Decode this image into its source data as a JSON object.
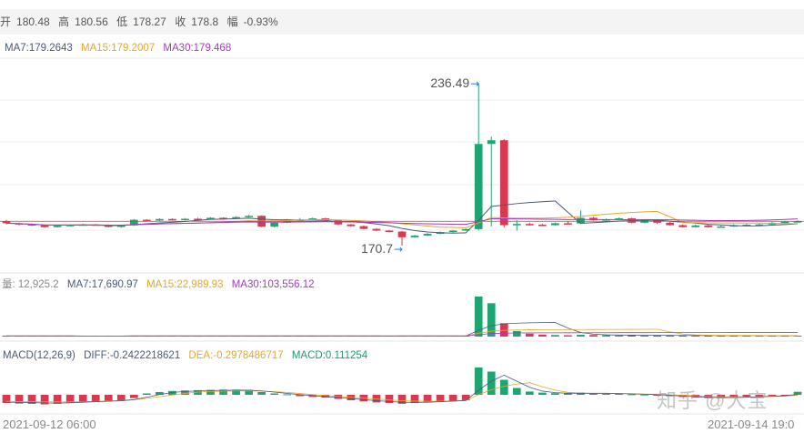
{
  "ohlc": {
    "open_label": "开",
    "open": "180.48",
    "high_label": "高",
    "high": "180.56",
    "low_label": "低",
    "low": "178.27",
    "close_label": "收",
    "close": "178.8",
    "change_label": "幅",
    "change": "-0.93%"
  },
  "price_ma": {
    "ma7": "MA7:179.2643",
    "ma15": "MA15:179.2007",
    "ma30": "MA30:179.468"
  },
  "volume_legend": {
    "vol": "量: 12,925.2",
    "ma7": "MA7:17,690.97",
    "ma15": "MA15:22,989.93",
    "ma30": "MA30:103,556.12"
  },
  "macd_legend": {
    "name": "MACD(12,26,9)",
    "diff": "DIFF:-0.2422218621",
    "dea": "DEA:-0.2978486717",
    "macd": "MACD:0.111254"
  },
  "annotations": {
    "high": "236.49",
    "low": "170.7"
  },
  "time_axis": {
    "start": "2021-09-12 06:00",
    "end": "2021-09-14 19:0"
  },
  "watermark": "知乎 @大宝",
  "colors": {
    "up": "#1ea672",
    "down": "#d9384f",
    "ma7": "#4a5a7a",
    "ma15": "#e8a530",
    "ma30": "#a23dbf"
  },
  "chart_data": {
    "type": "candlestick",
    "candles": [
      [
        180.5,
        179.8,
        181.2,
        179.3
      ],
      [
        179.8,
        179.4,
        180.0,
        178.9
      ],
      [
        179.4,
        179.0,
        179.7,
        178.6
      ],
      [
        179.0,
        178.2,
        179.3,
        177.9
      ],
      [
        178.2,
        178.8,
        179.1,
        178.0
      ],
      [
        178.8,
        179.1,
        179.4,
        178.6
      ],
      [
        179.1,
        179.3,
        179.6,
        178.9
      ],
      [
        179.3,
        179.2,
        179.5,
        178.9
      ],
      [
        179.2,
        178.3,
        179.3,
        178.1
      ],
      [
        178.3,
        178.9,
        179.2,
        178.0
      ],
      [
        178.9,
        181.2,
        181.5,
        178.7
      ],
      [
        181.2,
        180.9,
        181.4,
        180.6
      ],
      [
        180.9,
        181.5,
        181.8,
        180.7
      ],
      [
        181.5,
        181.1,
        181.8,
        180.9
      ],
      [
        181.1,
        181.6,
        181.9,
        180.9
      ],
      [
        181.6,
        181.4,
        182.0,
        181.2
      ],
      [
        181.4,
        182.0,
        182.3,
        181.2
      ],
      [
        182.0,
        181.7,
        182.2,
        181.4
      ],
      [
        181.7,
        182.3,
        182.6,
        181.5
      ],
      [
        182.3,
        182.8,
        183.2,
        182.1
      ],
      [
        182.8,
        178.4,
        183.0,
        178.2
      ],
      [
        178.4,
        180.0,
        180.3,
        178.0
      ],
      [
        180.0,
        181.2,
        181.5,
        179.8
      ],
      [
        181.2,
        181.3,
        181.9,
        181.0
      ],
      [
        181.3,
        181.8,
        182.1,
        181.1
      ],
      [
        181.8,
        181.0,
        182.0,
        180.8
      ],
      [
        181.0,
        179.3,
        181.2,
        179.0
      ],
      [
        179.3,
        178.6,
        179.5,
        178.4
      ],
      [
        178.6,
        177.5,
        178.9,
        177.3
      ],
      [
        177.5,
        176.8,
        177.8,
        176.5
      ],
      [
        176.8,
        176.4,
        177.0,
        176.1
      ],
      [
        176.4,
        174.1,
        176.6,
        170.7
      ],
      [
        174.1,
        174.8,
        175.0,
        173.9
      ],
      [
        174.8,
        175.5,
        175.8,
        174.6
      ],
      [
        175.5,
        176.2,
        176.4,
        175.3
      ],
      [
        176.2,
        176.8,
        177.0,
        176.0
      ],
      [
        176.8,
        177.4,
        177.6,
        176.6
      ],
      [
        177.4,
        212.0,
        236.49,
        176.8
      ],
      [
        212.0,
        213.5,
        215.0,
        178.5
      ],
      [
        213.5,
        179.0,
        214.0,
        178.0
      ],
      [
        179.0,
        179.5,
        181.0,
        176.8
      ],
      [
        179.5,
        179.2,
        180.0,
        178.8
      ],
      [
        179.2,
        179.0,
        179.6,
        178.6
      ],
      [
        179.0,
        179.8,
        180.1,
        178.8
      ],
      [
        179.8,
        179.7,
        180.5,
        179.3
      ],
      [
        179.7,
        182.0,
        185.0,
        179.5
      ],
      [
        182.0,
        181.0,
        182.4,
        180.8
      ],
      [
        181.0,
        181.4,
        181.7,
        180.8
      ],
      [
        181.4,
        181.8,
        182.1,
        181.2
      ],
      [
        181.8,
        180.0,
        182.0,
        179.8
      ],
      [
        180.0,
        181.0,
        181.3,
        179.8
      ],
      [
        181.0,
        180.0,
        181.2,
        179.5
      ],
      [
        180.0,
        179.0,
        180.3,
        178.8
      ],
      [
        179.0,
        178.2,
        179.3,
        178.0
      ],
      [
        178.2,
        178.9,
        179.2,
        178.0
      ],
      [
        178.9,
        178.2,
        179.2,
        178.0
      ],
      [
        178.2,
        178.5,
        178.9,
        178.0
      ],
      [
        178.5,
        179.0,
        179.4,
        178.3
      ],
      [
        179.0,
        179.2,
        179.5,
        178.8
      ],
      [
        179.2,
        179.3,
        179.6,
        179.0
      ],
      [
        179.3,
        180.0,
        180.3,
        179.1
      ],
      [
        180.0,
        180.4,
        180.8,
        179.8
      ],
      [
        180.4,
        180.6,
        181.0,
        180.2
      ]
    ],
    "volume": [
      300,
      280,
      260,
      300,
      260,
      240,
      220,
      240,
      260,
      300,
      400,
      320,
      300,
      280,
      300,
      260,
      280,
      240,
      260,
      300,
      400,
      300,
      280,
      260,
      240,
      260,
      300,
      280,
      300,
      260,
      240,
      400,
      280,
      260,
      240,
      260,
      260,
      18000,
      15000,
      6000,
      2500,
      1300,
      900,
      700,
      600,
      800,
      700,
      600,
      500,
      600,
      500,
      500,
      450,
      400,
      450,
      400,
      380,
      400,
      380,
      360,
      380,
      400,
      380
    ],
    "macd_hist": [
      -0.3,
      -0.32,
      -0.33,
      -0.35,
      -0.33,
      -0.3,
      -0.28,
      -0.26,
      -0.25,
      -0.22,
      -0.12,
      0.05,
      0.1,
      0.14,
      0.16,
      0.17,
      0.18,
      0.19,
      0.19,
      0.18,
      0.1,
      0.05,
      0.02,
      -0.05,
      -0.08,
      -0.1,
      -0.15,
      -0.2,
      -0.24,
      -0.28,
      -0.3,
      -0.33,
      -0.3,
      -0.28,
      -0.26,
      -0.24,
      -0.2,
      1.0,
      0.85,
      0.55,
      0.25,
      0.12,
      0.08,
      0.06,
      0.05,
      0.08,
      0.06,
      0.05,
      0.04,
      0.02,
      0.01,
      -0.02,
      -0.05,
      -0.08,
      -0.1,
      -0.12,
      -0.12,
      -0.1,
      -0.08,
      -0.06,
      -0.04,
      -0.02,
      0.11
    ]
  }
}
